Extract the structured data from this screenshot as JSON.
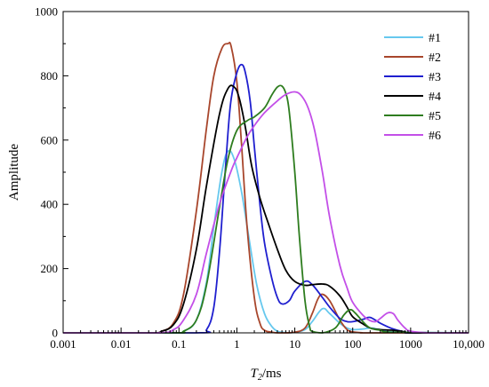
{
  "chart_data": {
    "type": "line",
    "title": "",
    "xlabel_main": "T",
    "xlabel_sub": "2",
    "xlabel_unit": "/ms",
    "ylabel": "Amplitude",
    "xscale": "log",
    "xlim": [
      0.001,
      10000
    ],
    "ylim": [
      0,
      1000
    ],
    "x_ticks": [
      {
        "value": 0.001,
        "label": "0.001"
      },
      {
        "value": 0.01,
        "label": "0.01"
      },
      {
        "value": 0.1,
        "label": "0.1"
      },
      {
        "value": 1,
        "label": "1"
      },
      {
        "value": 10,
        "label": "10"
      },
      {
        "value": 100,
        "label": "100"
      },
      {
        "value": 1000,
        "label": "1000"
      },
      {
        "value": 10000,
        "label": "10,000"
      }
    ],
    "y_ticks": [
      {
        "value": 0,
        "label": "0"
      },
      {
        "value": 200,
        "label": "200"
      },
      {
        "value": 400,
        "label": "400"
      },
      {
        "value": 600,
        "label": "600"
      },
      {
        "value": 800,
        "label": "800"
      },
      {
        "value": 1000,
        "label": "1000"
      }
    ],
    "grid": false,
    "legend_position": "top-right",
    "series": [
      {
        "name": "#1",
        "color": "#66c8ee",
        "x": [
          0.001,
          0.08,
          0.12,
          0.2,
          0.3,
          0.4,
          0.55,
          0.7,
          0.9,
          1.2,
          1.6,
          2.2,
          3,
          4,
          5,
          6,
          8,
          10,
          15,
          20,
          30,
          40,
          60,
          80,
          100,
          150,
          200,
          300,
          500,
          10000
        ],
        "y": [
          0,
          0,
          5,
          40,
          160,
          330,
          500,
          565,
          540,
          440,
          300,
          150,
          60,
          20,
          5,
          2,
          0,
          2,
          10,
          35,
          75,
          60,
          30,
          15,
          10,
          12,
          15,
          10,
          3,
          0
        ]
      },
      {
        "name": "#2",
        "color": "#a8462c",
        "x": [
          0.001,
          0.03,
          0.05,
          0.08,
          0.12,
          0.2,
          0.3,
          0.4,
          0.55,
          0.7,
          0.8,
          1,
          1.2,
          1.5,
          2,
          2.5,
          3,
          4,
          5,
          7,
          10,
          15,
          20,
          25,
          30,
          40,
          60,
          80,
          100,
          150,
          200,
          10000
        ],
        "y": [
          0,
          0,
          5,
          30,
          120,
          380,
          640,
          800,
          885,
          900,
          890,
          780,
          590,
          330,
          110,
          30,
          8,
          2,
          0,
          0,
          2,
          15,
          60,
          105,
          120,
          100,
          40,
          10,
          3,
          0,
          0,
          0
        ]
      },
      {
        "name": "#3",
        "color": "#1f1fcf",
        "x": [
          0.001,
          0.2,
          0.3,
          0.4,
          0.5,
          0.6,
          0.7,
          0.8,
          1,
          1.2,
          1.4,
          1.7,
          2,
          2.5,
          3,
          4,
          5,
          6,
          8,
          10,
          15,
          20,
          30,
          40,
          60,
          80,
          100,
          150,
          200,
          300,
          500,
          800,
          1000,
          10000
        ],
        "y": [
          0,
          0,
          10,
          80,
          250,
          450,
          620,
          730,
          810,
          835,
          810,
          720,
          580,
          400,
          280,
          170,
          110,
          90,
          100,
          130,
          160,
          150,
          110,
          80,
          45,
          35,
          35,
          42,
          48,
          30,
          12,
          3,
          0,
          0
        ]
      },
      {
        "name": "#4",
        "color": "#000000",
        "x": [
          0.001,
          0.03,
          0.05,
          0.08,
          0.12,
          0.2,
          0.3,
          0.5,
          0.7,
          0.9,
          1.1,
          1.4,
          1.8,
          2.5,
          3.5,
          5,
          7,
          10,
          15,
          20,
          30,
          40,
          60,
          80,
          100,
          150,
          200,
          300,
          500,
          800,
          1000,
          10000
        ],
        "y": [
          0,
          0,
          5,
          25,
          90,
          260,
          460,
          680,
          760,
          765,
          730,
          640,
          520,
          420,
          340,
          260,
          195,
          160,
          148,
          150,
          152,
          145,
          115,
          80,
          50,
          28,
          15,
          10,
          8,
          3,
          0,
          0
        ]
      },
      {
        "name": "#5",
        "color": "#2e7d1f",
        "x": [
          0.001,
          0.08,
          0.12,
          0.2,
          0.3,
          0.5,
          0.7,
          1,
          1.5,
          2,
          3,
          4,
          5,
          6,
          7,
          8,
          10,
          12,
          15,
          18,
          20,
          30,
          50,
          70,
          90,
          110,
          150,
          200,
          300,
          500,
          10000
        ],
        "y": [
          0,
          0,
          5,
          40,
          150,
          390,
          540,
          630,
          660,
          672,
          700,
          740,
          765,
          768,
          745,
          690,
          500,
          300,
          100,
          20,
          5,
          0,
          15,
          55,
          72,
          62,
          35,
          15,
          8,
          2,
          0
        ]
      },
      {
        "name": "#6",
        "color": "#c34fe8",
        "x": [
          0.001,
          0.04,
          0.08,
          0.12,
          0.2,
          0.3,
          0.5,
          0.8,
          1,
          1.5,
          2,
          3,
          5,
          7,
          10,
          13,
          17,
          22,
          30,
          40,
          60,
          80,
          100,
          150,
          200,
          250,
          300,
          400,
          500,
          600,
          800,
          1000,
          2000,
          10000
        ],
        "y": [
          0,
          0,
          10,
          40,
          120,
          250,
          400,
          505,
          545,
          610,
          645,
          685,
          722,
          742,
          750,
          738,
          700,
          630,
          500,
          360,
          210,
          140,
          95,
          55,
          38,
          35,
          45,
          62,
          60,
          40,
          15,
          5,
          0,
          0
        ]
      }
    ]
  }
}
